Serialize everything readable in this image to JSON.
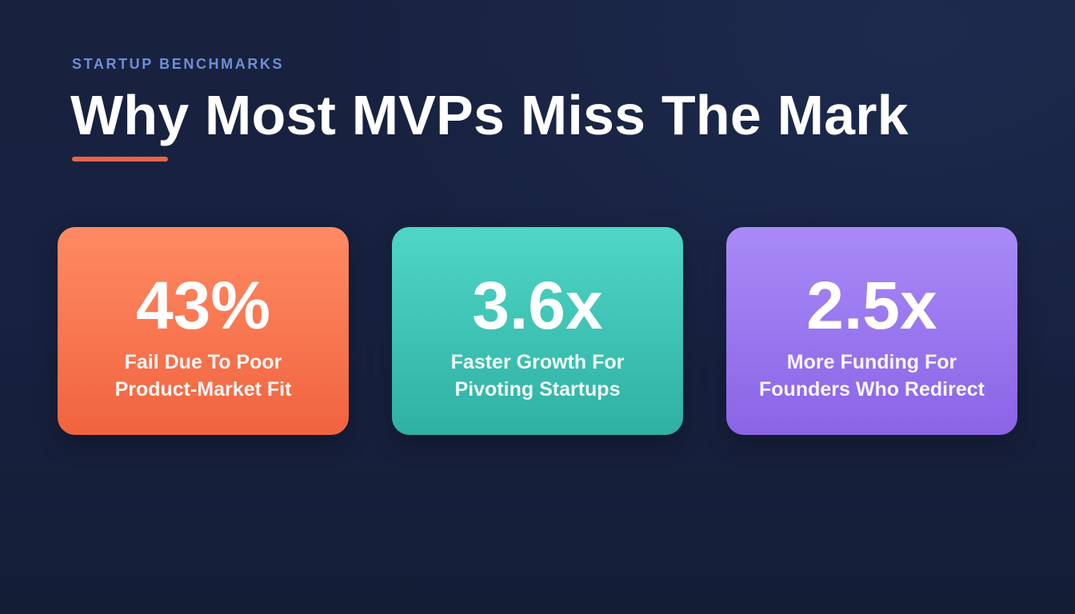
{
  "header": {
    "kicker": "STARTUP BENCHMARKS",
    "title": "Why Most MVPs Miss The Mark",
    "accent_color": "#e8644a"
  },
  "stats": [
    {
      "value": "43%",
      "label_line1": "Fail Due To Poor",
      "label_line2": "Product-Market Fit",
      "gradient_top": "#ff8a63",
      "gradient_bottom": "#f0643f"
    },
    {
      "value": "3.6x",
      "label_line1": "Faster Growth For",
      "label_line2": "Pivoting Startups",
      "gradient_top": "#4fd6c6",
      "gradient_bottom": "#2fb0a2"
    },
    {
      "value": "2.5x",
      "label_line1": "More Funding For",
      "label_line2": "Founders Who Redirect",
      "gradient_top": "#a98af7",
      "gradient_bottom": "#8a64e6"
    }
  ]
}
